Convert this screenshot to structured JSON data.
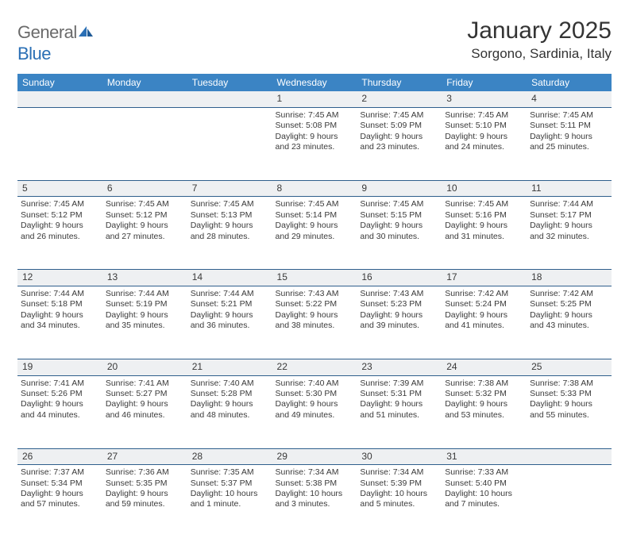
{
  "brand": {
    "name_a": "General",
    "name_b": "Blue"
  },
  "title": "January 2025",
  "subtitle": "Sorgono, Sardinia, Italy",
  "colors": {
    "header_bg": "#3b84c4",
    "header_text": "#ffffff",
    "daynum_bg": "#eef0f2",
    "rule": "#2f5f8c",
    "text": "#3a3a3a",
    "logo_gray": "#6a6a6a",
    "logo_blue": "#2a6fb5"
  },
  "day_headers": [
    "Sunday",
    "Monday",
    "Tuesday",
    "Wednesday",
    "Thursday",
    "Friday",
    "Saturday"
  ],
  "weeks": [
    {
      "nums": [
        "",
        "",
        "",
        "1",
        "2",
        "3",
        "4"
      ],
      "cells": [
        null,
        null,
        null,
        {
          "sunrise": "7:45 AM",
          "sunset": "5:08 PM",
          "daylight_a": "9 hours",
          "daylight_b": "and 23 minutes."
        },
        {
          "sunrise": "7:45 AM",
          "sunset": "5:09 PM",
          "daylight_a": "9 hours",
          "daylight_b": "and 23 minutes."
        },
        {
          "sunrise": "7:45 AM",
          "sunset": "5:10 PM",
          "daylight_a": "9 hours",
          "daylight_b": "and 24 minutes."
        },
        {
          "sunrise": "7:45 AM",
          "sunset": "5:11 PM",
          "daylight_a": "9 hours",
          "daylight_b": "and 25 minutes."
        }
      ]
    },
    {
      "nums": [
        "5",
        "6",
        "7",
        "8",
        "9",
        "10",
        "11"
      ],
      "cells": [
        {
          "sunrise": "7:45 AM",
          "sunset": "5:12 PM",
          "daylight_a": "9 hours",
          "daylight_b": "and 26 minutes."
        },
        {
          "sunrise": "7:45 AM",
          "sunset": "5:12 PM",
          "daylight_a": "9 hours",
          "daylight_b": "and 27 minutes."
        },
        {
          "sunrise": "7:45 AM",
          "sunset": "5:13 PM",
          "daylight_a": "9 hours",
          "daylight_b": "and 28 minutes."
        },
        {
          "sunrise": "7:45 AM",
          "sunset": "5:14 PM",
          "daylight_a": "9 hours",
          "daylight_b": "and 29 minutes."
        },
        {
          "sunrise": "7:45 AM",
          "sunset": "5:15 PM",
          "daylight_a": "9 hours",
          "daylight_b": "and 30 minutes."
        },
        {
          "sunrise": "7:45 AM",
          "sunset": "5:16 PM",
          "daylight_a": "9 hours",
          "daylight_b": "and 31 minutes."
        },
        {
          "sunrise": "7:44 AM",
          "sunset": "5:17 PM",
          "daylight_a": "9 hours",
          "daylight_b": "and 32 minutes."
        }
      ]
    },
    {
      "nums": [
        "12",
        "13",
        "14",
        "15",
        "16",
        "17",
        "18"
      ],
      "cells": [
        {
          "sunrise": "7:44 AM",
          "sunset": "5:18 PM",
          "daylight_a": "9 hours",
          "daylight_b": "and 34 minutes."
        },
        {
          "sunrise": "7:44 AM",
          "sunset": "5:19 PM",
          "daylight_a": "9 hours",
          "daylight_b": "and 35 minutes."
        },
        {
          "sunrise": "7:44 AM",
          "sunset": "5:21 PM",
          "daylight_a": "9 hours",
          "daylight_b": "and 36 minutes."
        },
        {
          "sunrise": "7:43 AM",
          "sunset": "5:22 PM",
          "daylight_a": "9 hours",
          "daylight_b": "and 38 minutes."
        },
        {
          "sunrise": "7:43 AM",
          "sunset": "5:23 PM",
          "daylight_a": "9 hours",
          "daylight_b": "and 39 minutes."
        },
        {
          "sunrise": "7:42 AM",
          "sunset": "5:24 PM",
          "daylight_a": "9 hours",
          "daylight_b": "and 41 minutes."
        },
        {
          "sunrise": "7:42 AM",
          "sunset": "5:25 PM",
          "daylight_a": "9 hours",
          "daylight_b": "and 43 minutes."
        }
      ]
    },
    {
      "nums": [
        "19",
        "20",
        "21",
        "22",
        "23",
        "24",
        "25"
      ],
      "cells": [
        {
          "sunrise": "7:41 AM",
          "sunset": "5:26 PM",
          "daylight_a": "9 hours",
          "daylight_b": "and 44 minutes."
        },
        {
          "sunrise": "7:41 AM",
          "sunset": "5:27 PM",
          "daylight_a": "9 hours",
          "daylight_b": "and 46 minutes."
        },
        {
          "sunrise": "7:40 AM",
          "sunset": "5:28 PM",
          "daylight_a": "9 hours",
          "daylight_b": "and 48 minutes."
        },
        {
          "sunrise": "7:40 AM",
          "sunset": "5:30 PM",
          "daylight_a": "9 hours",
          "daylight_b": "and 49 minutes."
        },
        {
          "sunrise": "7:39 AM",
          "sunset": "5:31 PM",
          "daylight_a": "9 hours",
          "daylight_b": "and 51 minutes."
        },
        {
          "sunrise": "7:38 AM",
          "sunset": "5:32 PM",
          "daylight_a": "9 hours",
          "daylight_b": "and 53 minutes."
        },
        {
          "sunrise": "7:38 AM",
          "sunset": "5:33 PM",
          "daylight_a": "9 hours",
          "daylight_b": "and 55 minutes."
        }
      ]
    },
    {
      "nums": [
        "26",
        "27",
        "28",
        "29",
        "30",
        "31",
        ""
      ],
      "cells": [
        {
          "sunrise": "7:37 AM",
          "sunset": "5:34 PM",
          "daylight_a": "9 hours",
          "daylight_b": "and 57 minutes."
        },
        {
          "sunrise": "7:36 AM",
          "sunset": "5:35 PM",
          "daylight_a": "9 hours",
          "daylight_b": "and 59 minutes."
        },
        {
          "sunrise": "7:35 AM",
          "sunset": "5:37 PM",
          "daylight_a": "10 hours",
          "daylight_b": "and 1 minute."
        },
        {
          "sunrise": "7:34 AM",
          "sunset": "5:38 PM",
          "daylight_a": "10 hours",
          "daylight_b": "and 3 minutes."
        },
        {
          "sunrise": "7:34 AM",
          "sunset": "5:39 PM",
          "daylight_a": "10 hours",
          "daylight_b": "and 5 minutes."
        },
        {
          "sunrise": "7:33 AM",
          "sunset": "5:40 PM",
          "daylight_a": "10 hours",
          "daylight_b": "and 7 minutes."
        },
        null
      ]
    }
  ],
  "labels": {
    "sunrise_prefix": "Sunrise: ",
    "sunset_prefix": "Sunset: ",
    "daylight_prefix": "Daylight: "
  }
}
